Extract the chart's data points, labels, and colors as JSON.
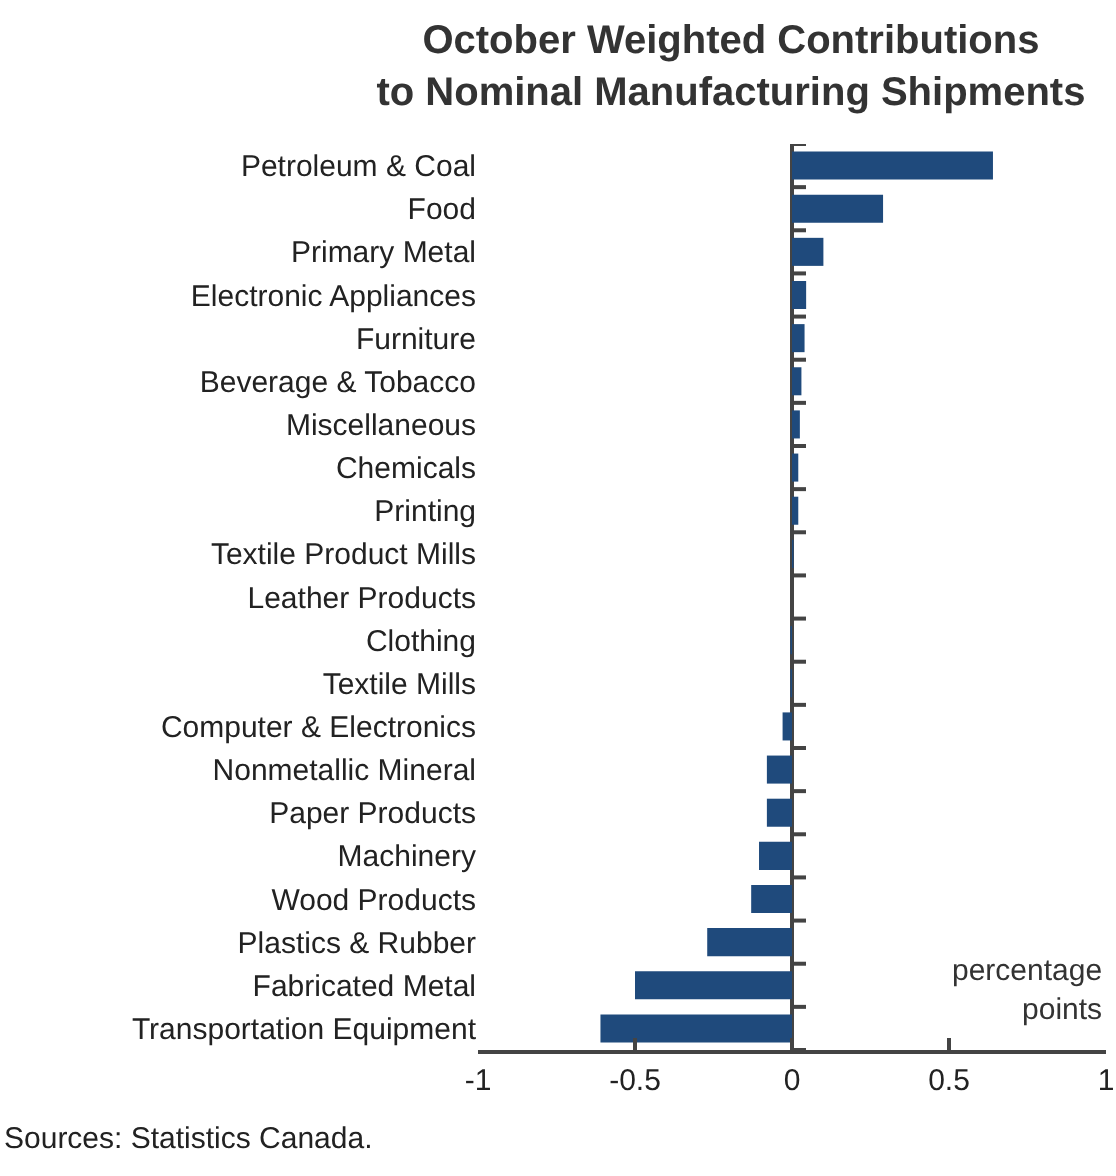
{
  "chart_data": {
    "type": "bar",
    "orientation": "horizontal",
    "title": "October Weighted Contributions\nto Nominal Manufacturing Shipments",
    "categories": [
      "Petroleum & Coal",
      "Food",
      "Primary Metal",
      "Electronic Appliances",
      "Furniture",
      "Beverage & Tobacco",
      "Miscellaneous",
      "Chemicals",
      "Printing",
      "Textile Product Mills",
      "Leather Products",
      "Clothing",
      "Textile Mills",
      "Computer & Electronics",
      "Nonmetallic Mineral",
      "Paper Products",
      "Machinery",
      "Wood Products",
      "Plastics & Rubber",
      "Fabricated Metal",
      "Transportation Equipment"
    ],
    "values": [
      0.64,
      0.29,
      0.1,
      0.045,
      0.04,
      0.03,
      0.025,
      0.02,
      0.02,
      0.005,
      0,
      -0.005,
      -0.005,
      -0.03,
      -0.08,
      -0.08,
      -0.105,
      -0.13,
      -0.27,
      -0.5,
      -0.61
    ],
    "color": "#1f4a7c",
    "xlim": [
      -1,
      1
    ],
    "xticks": [
      -1,
      -0.5,
      0,
      0.5,
      1
    ],
    "annotations": [
      "percentage\npoints",
      "Sources: Statistics Canada."
    ]
  }
}
